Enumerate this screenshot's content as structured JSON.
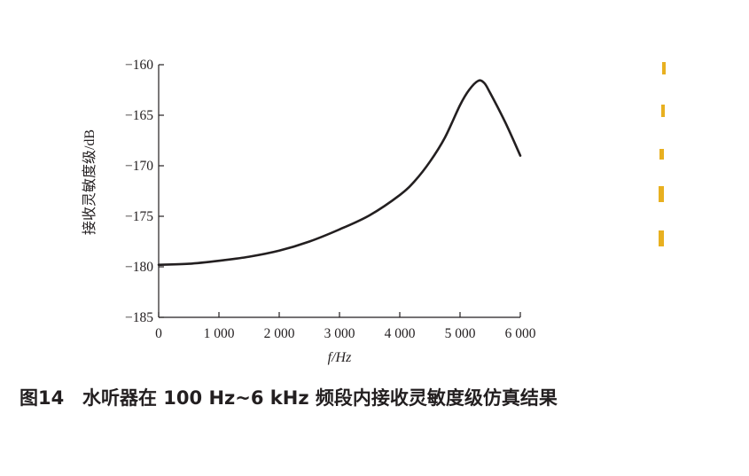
{
  "chart_data": {
    "type": "line",
    "xlabel": "f/Hz",
    "ylabel": "接收灵敏度级/dB",
    "xlim": [
      0,
      6000
    ],
    "ylim": [
      -185,
      -160
    ],
    "x_ticks": [
      0,
      1000,
      2000,
      3000,
      4000,
      5000,
      6000
    ],
    "x_tick_labels": [
      "0",
      "1 000",
      "2 000",
      "3 000",
      "4 000",
      "5 000",
      "6 000"
    ],
    "y_ticks": [
      -160,
      -165,
      -170,
      -175,
      -180,
      -185
    ],
    "y_tick_labels": [
      "−160",
      "−165",
      "−170",
      "−175",
      "−180",
      "−185"
    ],
    "grid": false,
    "series": [
      {
        "x": [
          0,
          500,
          1000,
          1500,
          2000,
          2500,
          3000,
          3500,
          4000,
          4250,
          4500,
          4750,
          5000,
          5150,
          5300,
          5400,
          5500,
          5750,
          6000
        ],
        "y": [
          -179.8,
          -179.7,
          -179.4,
          -179.0,
          -178.4,
          -177.5,
          -176.3,
          -174.9,
          -172.9,
          -171.5,
          -169.6,
          -167.2,
          -164.0,
          -162.5,
          -161.6,
          -161.8,
          -162.8,
          -165.7,
          -169.0
        ]
      }
    ],
    "line_color": "#231f20"
  },
  "caption": {
    "number": "图14",
    "text": "水听器在 100 Hz~6 kHz 频段内接收灵敏度级仿真结果"
  }
}
